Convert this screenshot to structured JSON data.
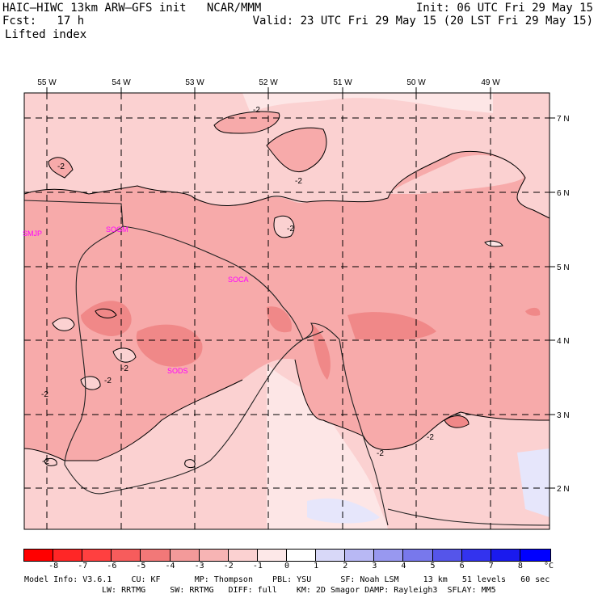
{
  "header": {
    "title": "HAIC–HIWC 13km ARW–GFS init   NCAR/MMM",
    "forecast": "Fcst:   17 h",
    "variable": "Lifted index",
    "init": "Init: 06 UTC Fri 29 May 15",
    "valid": "Valid: 23 UTC Fri 29 May 15 (20 LST Fri 29 May 15)"
  },
  "map": {
    "lon_labels": [
      "55 W",
      "54 W",
      "53 W",
      "52 W",
      "51 W",
      "50 W",
      "49 W"
    ],
    "lat_labels": [
      "7 N",
      "6 N",
      "5 N",
      "4 N",
      "3 N",
      "2 N"
    ],
    "stations": [
      "SMJP",
      "SOGM",
      "SOCA",
      "SODS"
    ],
    "contour_labels": [
      "-2",
      "-2",
      "-2",
      "-2",
      "-2",
      "-2",
      "-2",
      "-2",
      "-2",
      "-2"
    ],
    "colors": {
      "bg_light": "#fbd1d1",
      "mid": "#f7aaaa",
      "dark": "#f08888",
      "pale": "#fde6e6",
      "blueish": "#e6e6fb",
      "station": "#ff00ff"
    }
  },
  "legend": {
    "labels": [
      "-8",
      "-7",
      "-6",
      "-5",
      "-4",
      "-3",
      "-2",
      "-1",
      "0",
      "1",
      "2",
      "3",
      "4",
      "5",
      "6",
      "7",
      "8"
    ],
    "unit": "°C",
    "colors": [
      "#ff0000",
      "#ff2626",
      "#ff4040",
      "#f75c5c",
      "#f27878",
      "#f39a9a",
      "#f7b4b4",
      "#fbd1d1",
      "#fde8e8",
      "#ffffff",
      "#d8d8f8",
      "#b8b8f4",
      "#9898f0",
      "#7878ec",
      "#5555ea",
      "#3333ee",
      "#1a1aee",
      "#0000ff"
    ]
  },
  "footer": {
    "line1": "Model Info: V3.6.1    CU: KF       MP: Thompson    PBL: YSU      SF: Noah LSM     13 km   51 levels   60 sec",
    "line2": "LW: RRTMG     SW: RRTMG   DIFF: full    KM: 2D Smagor DAMP: Rayleigh3  SFLAY: MM5"
  }
}
